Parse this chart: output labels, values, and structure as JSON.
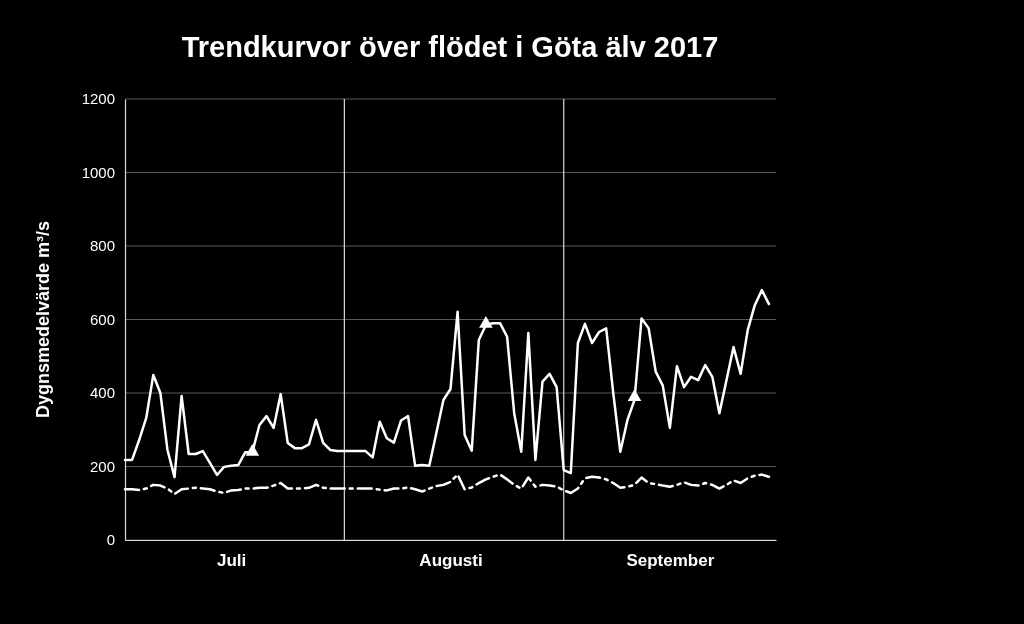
{
  "chart_data": {
    "type": "line",
    "title": "Trendkurvor över flödet i Göta älv 2017",
    "ylabel": "Dygnsmedelvärde m³/s",
    "x": [
      "2017-07-01",
      "2017-07-02",
      "2017-07-03",
      "2017-07-04",
      "2017-07-05",
      "2017-07-06",
      "2017-07-07",
      "2017-07-08",
      "2017-07-09",
      "2017-07-10",
      "2017-07-11",
      "2017-07-12",
      "2017-07-13",
      "2017-07-14",
      "2017-07-15",
      "2017-07-16",
      "2017-07-17",
      "2017-07-18",
      "2017-07-19",
      "2017-07-20",
      "2017-07-21",
      "2017-07-22",
      "2017-07-23",
      "2017-07-24",
      "2017-07-25",
      "2017-07-26",
      "2017-07-27",
      "2017-07-28",
      "2017-07-29",
      "2017-07-30",
      "2017-07-31",
      "2017-08-01",
      "2017-08-02",
      "2017-08-03",
      "2017-08-04",
      "2017-08-05",
      "2017-08-06",
      "2017-08-07",
      "2017-08-08",
      "2017-08-09",
      "2017-08-10",
      "2017-08-11",
      "2017-08-12",
      "2017-08-13",
      "2017-08-14",
      "2017-08-15",
      "2017-08-16",
      "2017-08-17",
      "2017-08-18",
      "2017-08-19",
      "2017-08-20",
      "2017-08-21",
      "2017-08-22",
      "2017-08-23",
      "2017-08-24",
      "2017-08-25",
      "2017-08-26",
      "2017-08-27",
      "2017-08-28",
      "2017-08-29",
      "2017-08-30",
      "2017-08-31",
      "2017-09-01",
      "2017-09-02",
      "2017-09-03",
      "2017-09-04",
      "2017-09-05",
      "2017-09-06",
      "2017-09-07",
      "2017-09-08",
      "2017-09-09",
      "2017-09-10",
      "2017-09-11",
      "2017-09-12",
      "2017-09-13",
      "2017-09-14",
      "2017-09-15",
      "2017-09-16",
      "2017-09-17",
      "2017-09-18",
      "2017-09-19",
      "2017-09-20",
      "2017-09-21",
      "2017-09-22",
      "2017-09-23",
      "2017-09-24",
      "2017-09-25",
      "2017-09-26",
      "2017-09-27",
      "2017-09-28",
      "2017-09-29",
      "2017-09-30"
    ],
    "series": [
      {
        "color": "#ffffff",
        "line_style": "solid",
        "values": [
          218,
          218,
          272,
          332,
          449,
          400,
          245,
          171,
          392,
          234,
          234,
          242,
          210,
          177,
          199,
          202,
          204,
          239,
          239,
          313,
          337,
          305,
          397,
          264,
          250,
          250,
          260,
          327,
          264,
          245,
          242,
          242,
          242,
          242,
          242,
          225,
          322,
          277,
          265,
          325,
          337,
          202,
          204,
          202,
          291,
          381,
          411,
          621,
          286,
          243,
          544,
          585,
          590,
          590,
          553,
          345,
          240,
          563,
          218,
          431,
          452,
          416,
          190,
          182,
          536,
          588,
          536,
          566,
          576,
          400,
          240,
          326,
          381,
          603,
          576,
          458,
          420,
          305,
          473,
          416,
          444,
          435,
          476,
          444,
          345,
          435,
          525,
          452,
          571,
          639,
          680,
          642
        ]
      },
      {
        "color": "#ffffff",
        "line_style": "dashed",
        "values": [
          138,
          138,
          136,
          140,
          150,
          148,
          140,
          125,
          138,
          140,
          142,
          140,
          138,
          132,
          128,
          135,
          136,
          140,
          140,
          142,
          142,
          148,
          155,
          140,
          140,
          140,
          142,
          150,
          142,
          140,
          140,
          140,
          140,
          140,
          140,
          140,
          137,
          135,
          140,
          140,
          143,
          138,
          132,
          140,
          147,
          150,
          158,
          178,
          138,
          143,
          155,
          165,
          172,
          178,
          165,
          150,
          140,
          170,
          145,
          150,
          148,
          145,
          135,
          128,
          140,
          168,
          172,
          170,
          165,
          155,
          142,
          145,
          150,
          170,
          155,
          152,
          148,
          145,
          150,
          157,
          150,
          148,
          155,
          150,
          140,
          150,
          162,
          155,
          168,
          175,
          178,
          172
        ]
      },
      {
        "type": "scatter",
        "color": "#ffffff",
        "marker": "triangle",
        "x": [
          "2017-07-19",
          "2017-08-21",
          "2017-09-11"
        ],
        "values": [
          240,
          588,
          389
        ]
      }
    ],
    "xlim": [
      "2017-07-01",
      "2017-10-01"
    ],
    "xticks": [
      {
        "value": "2017-07-16",
        "label": "Juli"
      },
      {
        "value": "2017-08-16",
        "label": "Augusti"
      },
      {
        "value": "2017-09-16",
        "label": "September"
      }
    ],
    "ylim": [
      0,
      1200
    ],
    "yticks": [
      0,
      200,
      400,
      600,
      800,
      1000,
      1200
    ],
    "grid": "y",
    "ref_lines": [
      {
        "axis": "x",
        "value": "2017-08-01",
        "color": "#d9d9d9"
      },
      {
        "axis": "x",
        "value": "2017-09-01",
        "color": "#d9d9d9"
      }
    ]
  }
}
